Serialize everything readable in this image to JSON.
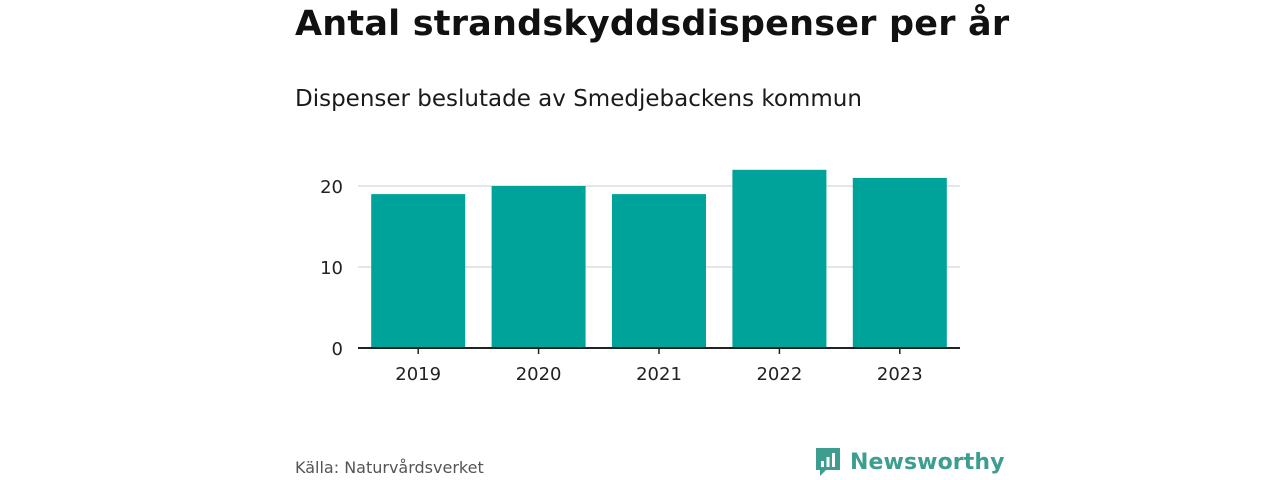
{
  "header": {
    "title": "Antal strandskyddsdispenser per år",
    "subtitle": "Dispenser beslutade av Smedjebackens kommun"
  },
  "footer": {
    "source": "Källa: Naturvårdsverket",
    "brand": "Newsworthy"
  },
  "colors": {
    "bar": "#00a39a",
    "grid": "#dddddd",
    "axis": "#222222",
    "brand": "#3d9e8f"
  },
  "chart_data": {
    "type": "bar",
    "title": "Antal strandskyddsdispenser per år",
    "subtitle": "Dispenser beslutade av Smedjebackens kommun",
    "categories": [
      "2019",
      "2020",
      "2021",
      "2022",
      "2023"
    ],
    "values": [
      19,
      20,
      19,
      22,
      21
    ],
    "xlabel": "",
    "ylabel": "",
    "ylim": [
      0,
      22
    ],
    "yticks": [
      0,
      10,
      20
    ],
    "grid": true,
    "legend": "none"
  }
}
